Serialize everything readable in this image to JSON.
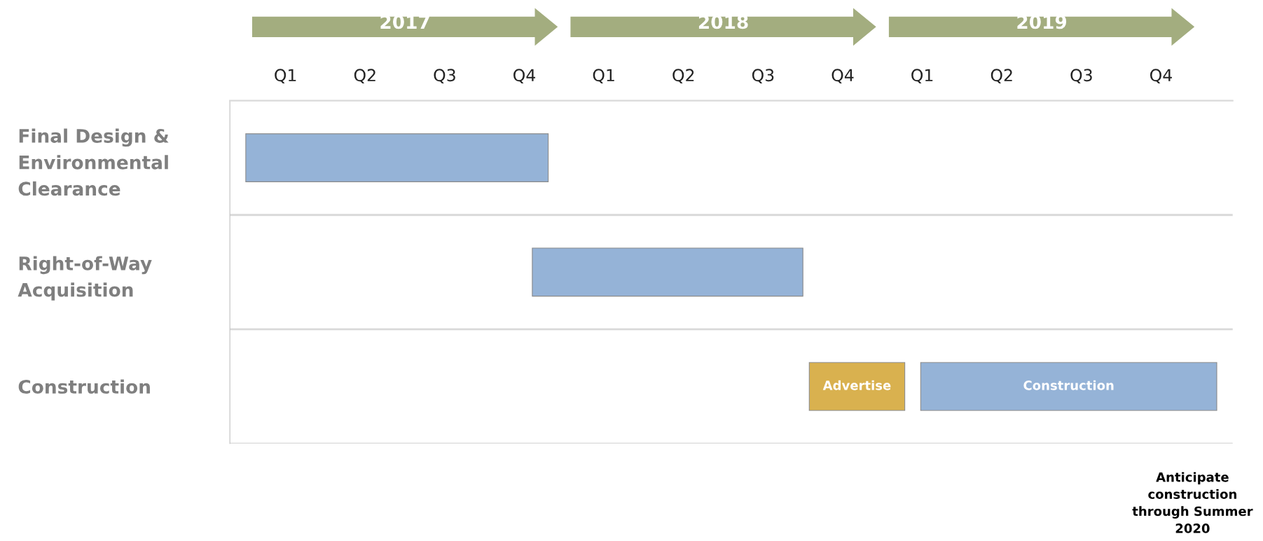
{
  "chart_data": {
    "type": "bar",
    "orientation": "horizontal",
    "categories": [
      "Final Design &\nEnvironmental\nClearance",
      "Right-of-Way\nAcquisition",
      "Construction"
    ],
    "series": [
      {
        "values": [
          0.95,
          0.85,
          0.3
        ],
        "base": [
          2016.5,
          2017.4,
          2018.27
        ],
        "colors": [
          "#95b3d7",
          "#95b3d7",
          "#d9b14f"
        ],
        "value_labels": [
          null,
          null,
          "Advertise"
        ]
      },
      {
        "values": [
          null,
          null,
          0.93
        ],
        "base": [
          null,
          null,
          2018.62
        ],
        "colors": [
          null,
          null,
          "#95b3d7"
        ],
        "value_labels": [
          null,
          null,
          "Construction"
        ]
      }
    ],
    "xlim": [
      2016.45,
      2019.6
    ],
    "xticks": [
      2017,
      2018,
      2019
    ],
    "grid": "y",
    "annotations": [
      "Q1",
      "Q2",
      "Q3",
      "Q4",
      "Q1",
      "Q2",
      "Q3",
      "Q4",
      "Q1",
      "Q2",
      "Q3",
      "Q4",
      "Anticipate\nconstruction\nthrough Summer\n2020"
    ]
  }
}
